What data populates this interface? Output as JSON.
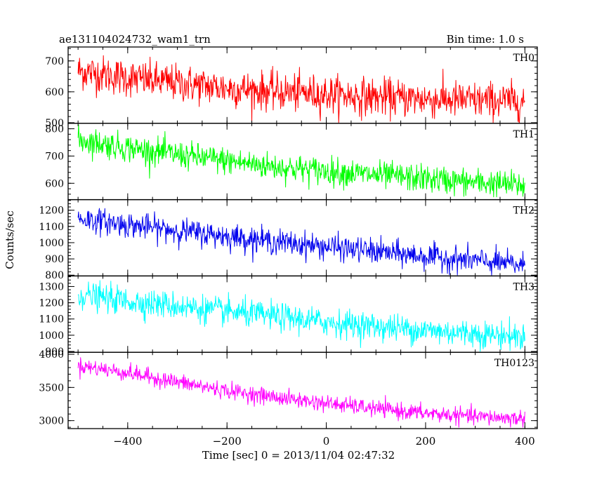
{
  "header": {
    "title": "ae131104024732_wam1_trn",
    "bin_time": "Bin time: 1.0 s"
  },
  "chart_data": {
    "type": "line",
    "title": "ae131104024732_wam1_trn",
    "subtitle": "Bin time: 1.0 s",
    "xlabel": "Time [sec] 0 = 2013/11/04 02:47:32",
    "ylabel": "Counts/sec",
    "xlim": [
      -520,
      425
    ],
    "x_ticks": [
      -400,
      -200,
      0,
      200,
      400
    ],
    "x_tick_labels": [
      "−400",
      "−200",
      "0",
      "200",
      "400"
    ],
    "x_range": [
      -500,
      400
    ],
    "bin_time_s": 1.0,
    "panels": [
      {
        "name": "TH0",
        "color": "#ff0000",
        "ylim": [
          498,
          745
        ],
        "y_ticks": [
          500,
          600,
          700
        ],
        "trend_x": [
          -500,
          -400,
          -300,
          -200,
          -100,
          0,
          100,
          200,
          300,
          400
        ],
        "trend_y": [
          668,
          645,
          628,
          612,
          600,
          592,
          583,
          577,
          572,
          570
        ],
        "noise_sigma": 30,
        "values_range": [
          500,
          740
        ]
      },
      {
        "name": "TH1",
        "color": "#00ff00",
        "ylim": [
          540,
          820
        ],
        "y_ticks": [
          600,
          700,
          800
        ],
        "trend_x": [
          -500,
          -400,
          -300,
          -200,
          -100,
          0,
          100,
          200,
          300,
          400
        ],
        "trend_y": [
          760,
          730,
          705,
          682,
          660,
          645,
          630,
          617,
          603,
          592
        ],
        "noise_sigma": 25,
        "values_range": [
          550,
          815
        ]
      },
      {
        "name": "TH2",
        "color": "#0000ee",
        "ylim": [
          795,
          1265
        ],
        "y_ticks": [
          800,
          900,
          1000,
          1100,
          1200
        ],
        "trend_x": [
          -500,
          -400,
          -300,
          -200,
          -100,
          0,
          100,
          200,
          300,
          400
        ],
        "trend_y": [
          1150,
          1110,
          1075,
          1040,
          1005,
          975,
          945,
          915,
          890,
          860
        ],
        "noise_sigma": 38,
        "values_range": [
          800,
          1260
        ]
      },
      {
        "name": "TH3",
        "color": "#00ffff",
        "ylim": [
          895,
          1365
        ],
        "y_ticks": [
          900,
          1000,
          1100,
          1200,
          1300
        ],
        "trend_x": [
          -500,
          -400,
          -300,
          -200,
          -100,
          0,
          100,
          200,
          300,
          400
        ],
        "trend_y": [
          1250,
          1210,
          1180,
          1145,
          1115,
          1080,
          1055,
          1030,
          1010,
          990
        ],
        "noise_sigma": 42,
        "values_range": [
          900,
          1350
        ]
      },
      {
        "name": "TH0123",
        "color": "#ff00ff",
        "ylim": [
          2880,
          4030
        ],
        "y_ticks": [
          3000,
          3500,
          4000
        ],
        "trend_x": [
          -500,
          -400,
          -300,
          -200,
          -100,
          0,
          100,
          200,
          300,
          400
        ],
        "trend_y": [
          3830,
          3720,
          3580,
          3450,
          3350,
          3260,
          3180,
          3110,
          3060,
          3030
        ],
        "noise_sigma": 60,
        "values_range": [
          2900,
          4000
        ]
      }
    ]
  }
}
